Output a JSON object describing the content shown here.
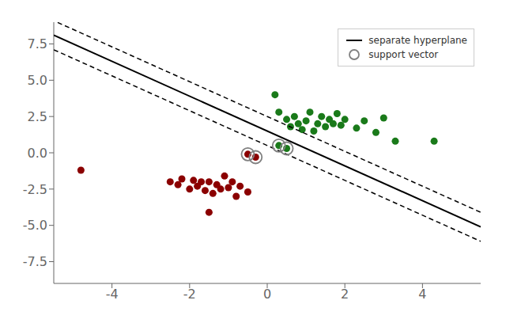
{
  "chart_data": {
    "type": "scatter",
    "series": [
      {
        "type": "scatter",
        "color": "#1a7a1a",
        "marker": "circle",
        "values": [
          [
            0.2,
            4.0
          ],
          [
            0.3,
            2.8
          ],
          [
            0.5,
            2.3
          ],
          [
            0.6,
            1.8
          ],
          [
            0.7,
            2.5
          ],
          [
            0.8,
            2.0
          ],
          [
            0.9,
            1.6
          ],
          [
            1.0,
            2.2
          ],
          [
            1.1,
            2.8
          ],
          [
            1.2,
            1.5
          ],
          [
            1.3,
            2.0
          ],
          [
            1.4,
            2.5
          ],
          [
            1.5,
            1.8
          ],
          [
            1.6,
            2.3
          ],
          [
            1.7,
            2.0
          ],
          [
            1.8,
            2.7
          ],
          [
            1.9,
            1.9
          ],
          [
            2.0,
            2.3
          ],
          [
            2.3,
            1.7
          ],
          [
            2.5,
            2.2
          ],
          [
            2.8,
            1.4
          ],
          [
            3.0,
            2.4
          ],
          [
            3.3,
            0.8
          ],
          [
            4.3,
            0.8
          ],
          [
            0.3,
            0.5
          ],
          [
            0.5,
            0.3
          ]
        ]
      },
      {
        "type": "scatter",
        "color": "#8b0000",
        "marker": "circle",
        "values": [
          [
            -4.8,
            -1.2
          ],
          [
            -2.5,
            -2.0
          ],
          [
            -2.3,
            -2.2
          ],
          [
            -2.2,
            -1.8
          ],
          [
            -2.0,
            -2.5
          ],
          [
            -1.9,
            -1.9
          ],
          [
            -1.8,
            -2.3
          ],
          [
            -1.7,
            -2.0
          ],
          [
            -1.6,
            -2.6
          ],
          [
            -1.5,
            -2.0
          ],
          [
            -1.4,
            -2.8
          ],
          [
            -1.3,
            -2.2
          ],
          [
            -1.2,
            -2.5
          ],
          [
            -1.1,
            -1.6
          ],
          [
            -1.0,
            -2.4
          ],
          [
            -0.9,
            -2.0
          ],
          [
            -0.8,
            -3.0
          ],
          [
            -0.7,
            -2.3
          ],
          [
            -0.5,
            -2.7
          ],
          [
            -0.5,
            -0.1
          ],
          [
            -0.3,
            -0.3
          ],
          [
            -1.5,
            -4.1
          ]
        ]
      },
      {
        "name": "separate hyperplane",
        "type": "line",
        "color": "black",
        "line_style": "solid",
        "values": [
          [
            -5.5,
            8.1
          ],
          [
            5.5,
            -5.1
          ]
        ]
      },
      {
        "type": "line",
        "color": "black",
        "line_style": "dashed",
        "values": [
          [
            -5.4,
            8.98
          ],
          [
            5.5,
            -4.1
          ]
        ]
      },
      {
        "type": "line",
        "color": "black",
        "line_style": "dashed",
        "values": [
          [
            -5.5,
            7.1
          ],
          [
            5.5,
            -6.1
          ]
        ]
      },
      {
        "name": "support vector",
        "type": "scatter",
        "color": "gray",
        "marker": "open_circle",
        "values": [
          [
            0.3,
            0.5
          ],
          [
            0.5,
            0.3
          ],
          [
            -0.5,
            -0.1
          ],
          [
            -0.3,
            -0.3
          ]
        ]
      }
    ],
    "xlim": [
      -5.5,
      5.5
    ],
    "ylim": [
      -9.0,
      9.0
    ],
    "xticks": [
      -4,
      -2,
      0,
      2,
      4
    ],
    "yticks": [
      -7.5,
      {
        "value": -5.0,
        "label": "-5.0"
      },
      -2.5,
      {
        "value": 0.0,
        "label": "0.0"
      },
      2.5,
      {
        "value": 5.0,
        "label": "5.0"
      },
      7.5
    ],
    "grid": false,
    "legend": "upper right"
  }
}
